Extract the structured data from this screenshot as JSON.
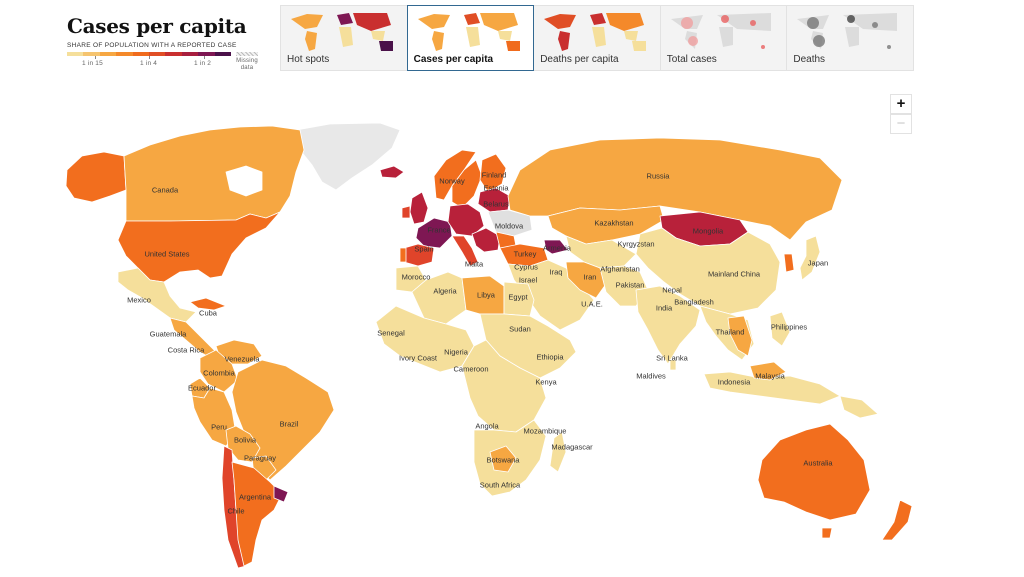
{
  "header": {
    "title": "Cases per capita",
    "legend_caption": "Share of population with a reported case",
    "legend_labels": [
      "1 in 15",
      "1 in 4",
      "1 in 2"
    ],
    "legend_missing": "Missing data",
    "legend_colors": [
      "#f5df9b",
      "#f5c46f",
      "#f6a742",
      "#f4892a",
      "#f06b1d",
      "#e04e25",
      "#c92f2f",
      "#a81f3f",
      "#7e1753",
      "#4a1149"
    ]
  },
  "tabs": [
    {
      "label": "Hot spots",
      "active": false
    },
    {
      "label": "Cases per capita",
      "active": true
    },
    {
      "label": "Deaths per capita",
      "active": false
    },
    {
      "label": "Total cases",
      "active": false
    },
    {
      "label": "Deaths",
      "active": false
    }
  ],
  "zoom": {
    "in_label": "+",
    "out_label": "−"
  },
  "colors": {
    "very_low": "#f5df9b",
    "low": "#f7c270",
    "medium": "#f6a742",
    "high": "#f26e1e",
    "very_high": "#e0442a",
    "severe": "#b8213a",
    "extreme": "#7e1753",
    "missing": "#e8e8e8",
    "tab_active_border": "#326891"
  },
  "map_labels": [
    {
      "text": "Canada",
      "name": "label-canada"
    },
    {
      "text": "United States",
      "name": "label-united-states"
    },
    {
      "text": "Mexico",
      "name": "label-mexico"
    },
    {
      "text": "Cuba",
      "name": "label-cuba"
    },
    {
      "text": "Guatemala",
      "name": "label-guatemala"
    },
    {
      "text": "Costa Rica",
      "name": "label-costa-rica"
    },
    {
      "text": "Venezuela",
      "name": "label-venezuela"
    },
    {
      "text": "Colombia",
      "name": "label-colombia"
    },
    {
      "text": "Ecuador",
      "name": "label-ecuador"
    },
    {
      "text": "Peru",
      "name": "label-peru"
    },
    {
      "text": "Brazil",
      "name": "label-brazil"
    },
    {
      "text": "Bolivia",
      "name": "label-bolivia"
    },
    {
      "text": "Paraguay",
      "name": "label-paraguay"
    },
    {
      "text": "Argentina",
      "name": "label-argentina"
    },
    {
      "text": "Chile",
      "name": "label-chile"
    },
    {
      "text": "Norway",
      "name": "label-norway"
    },
    {
      "text": "Finland",
      "name": "label-finland"
    },
    {
      "text": "Estonia",
      "name": "label-estonia"
    },
    {
      "text": "Belarus",
      "name": "label-belarus"
    },
    {
      "text": "Moldova",
      "name": "label-moldova"
    },
    {
      "text": "France",
      "name": "label-france"
    },
    {
      "text": "Spain",
      "name": "label-spain"
    },
    {
      "text": "Malta",
      "name": "label-malta"
    },
    {
      "text": "Turkey",
      "name": "label-turkey"
    },
    {
      "text": "Armenia",
      "name": "label-armenia"
    },
    {
      "text": "Cyprus",
      "name": "label-cyprus"
    },
    {
      "text": "Israel",
      "name": "label-israel"
    },
    {
      "text": "Iraq",
      "name": "label-iraq"
    },
    {
      "text": "Iran",
      "name": "label-iran"
    },
    {
      "text": "U.A.E.",
      "name": "label-uae"
    },
    {
      "text": "Russia",
      "name": "label-russia"
    },
    {
      "text": "Kazakhstan",
      "name": "label-kazakhstan"
    },
    {
      "text": "Kyrgyzstan",
      "name": "label-kyrgyzstan"
    },
    {
      "text": "Mongolia",
      "name": "label-mongolia"
    },
    {
      "text": "Afghanistan",
      "name": "label-afghanistan"
    },
    {
      "text": "Pakistan",
      "name": "label-pakistan"
    },
    {
      "text": "Nepal",
      "name": "label-nepal"
    },
    {
      "text": "Mainland China",
      "name": "label-mainland-china"
    },
    {
      "text": "Japan",
      "name": "label-japan"
    },
    {
      "text": "Bangladesh",
      "name": "label-bangladesh"
    },
    {
      "text": "India",
      "name": "label-india"
    },
    {
      "text": "Thailand",
      "name": "label-thailand"
    },
    {
      "text": "Philippines",
      "name": "label-philippines"
    },
    {
      "text": "Sri Lanka",
      "name": "label-sri-lanka"
    },
    {
      "text": "Maldives",
      "name": "label-maldives"
    },
    {
      "text": "Indonesia",
      "name": "label-indonesia"
    },
    {
      "text": "Malaysia",
      "name": "label-malaysia"
    },
    {
      "text": "Australia",
      "name": "label-australia"
    },
    {
      "text": "Morocco",
      "name": "label-morocco"
    },
    {
      "text": "Algeria",
      "name": "label-algeria"
    },
    {
      "text": "Libya",
      "name": "label-libya"
    },
    {
      "text": "Egypt",
      "name": "label-egypt"
    },
    {
      "text": "Senegal",
      "name": "label-senegal"
    },
    {
      "text": "Sudan",
      "name": "label-sudan"
    },
    {
      "text": "Nigeria",
      "name": "label-nigeria"
    },
    {
      "text": "Ivory Coast",
      "name": "label-ivory-coast"
    },
    {
      "text": "Ethiopia",
      "name": "label-ethiopia"
    },
    {
      "text": "Cameroon",
      "name": "label-cameroon"
    },
    {
      "text": "Kenya",
      "name": "label-kenya"
    },
    {
      "text": "Angola",
      "name": "label-angola"
    },
    {
      "text": "Mozambique",
      "name": "label-mozambique"
    },
    {
      "text": "Madagascar",
      "name": "label-madagascar"
    },
    {
      "text": "Botswana",
      "name": "label-botswana"
    },
    {
      "text": "South Africa",
      "name": "label-south-africa"
    }
  ]
}
